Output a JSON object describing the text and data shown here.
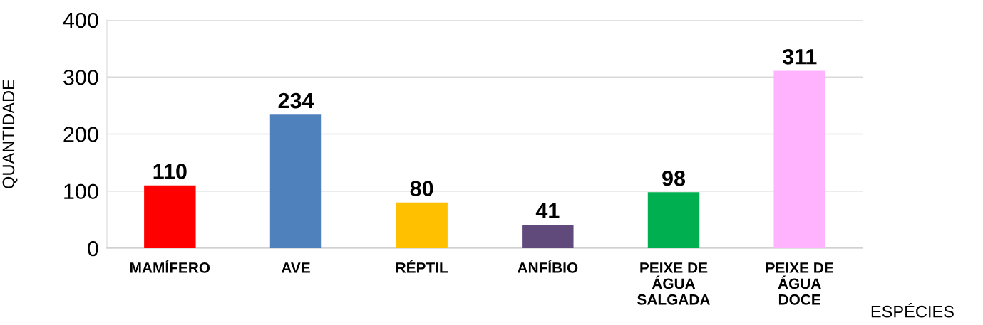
{
  "chart_data": {
    "type": "bar",
    "xlabel": "ESPÉCIES",
    "ylabel": "QUANTIDADE",
    "categories": [
      "MAMÍFERO",
      "AVE",
      "RÉPTIL",
      "ANFÍBIO",
      "PEIXE DE\nÁGUA\nSALGADA",
      "PEIXE DE\nÁGUA\nDOCE"
    ],
    "values": [
      110,
      234,
      80,
      41,
      98,
      311
    ],
    "colors": [
      "#ff0000",
      "#4f81bd",
      "#ffc000",
      "#604a7b",
      "#00b050",
      "#ffb3ff"
    ],
    "ylim": [
      0,
      400
    ],
    "yticks": [
      0,
      100,
      200,
      300,
      400
    ],
    "grid": "y",
    "data_labels": true,
    "legend": false
  }
}
